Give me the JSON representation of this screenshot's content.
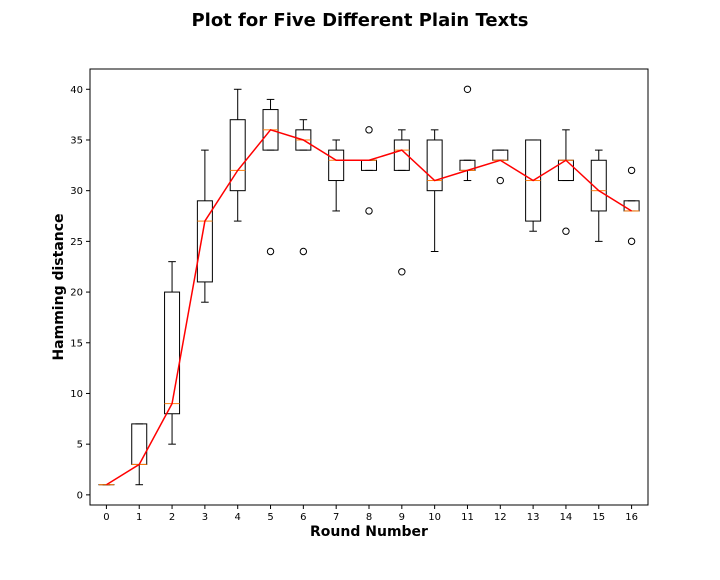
{
  "chart_data": {
    "type": "box",
    "title": "Plot for Five Different Plain Texts",
    "xlabel": "Round Number",
    "ylabel": "Hamming distance",
    "xlim": [
      -0.5,
      16.5
    ],
    "ylim": [
      -1,
      42
    ],
    "x_ticks": [
      "0",
      "1",
      "2",
      "3",
      "4",
      "5",
      "6",
      "7",
      "8",
      "9",
      "10",
      "11",
      "12",
      "13",
      "14",
      "15",
      "16"
    ],
    "y_ticks": [
      0,
      5,
      10,
      15,
      20,
      25,
      30,
      35,
      40
    ],
    "grid": false,
    "box_color": "#000000",
    "median_color": "#ff7f0e",
    "line_color": "#ff0000",
    "boxes": [
      {
        "x": 0,
        "whislo": 1,
        "q1": 1,
        "med": 1,
        "q3": 1,
        "whishi": 1,
        "fliers": []
      },
      {
        "x": 1,
        "whislo": 1,
        "q1": 3,
        "med": 3,
        "q3": 7,
        "whishi": 7,
        "fliers": []
      },
      {
        "x": 2,
        "whislo": 5,
        "q1": 8,
        "med": 9,
        "q3": 20,
        "whishi": 23,
        "fliers": []
      },
      {
        "x": 3,
        "whislo": 19,
        "q1": 21,
        "med": 27,
        "q3": 29,
        "whishi": 34,
        "fliers": []
      },
      {
        "x": 4,
        "whislo": 27,
        "q1": 30,
        "med": 32,
        "q3": 37,
        "whishi": 40,
        "fliers": []
      },
      {
        "x": 5,
        "whislo": 34,
        "q1": 34,
        "med": 36,
        "q3": 38,
        "whishi": 39,
        "fliers": [
          24
        ]
      },
      {
        "x": 6,
        "whislo": 34,
        "q1": 34,
        "med": 35,
        "q3": 36,
        "whishi": 37,
        "fliers": [
          24
        ]
      },
      {
        "x": 7,
        "whislo": 28,
        "q1": 31,
        "med": 33,
        "q3": 34,
        "whishi": 35,
        "fliers": []
      },
      {
        "x": 8,
        "whislo": 32,
        "q1": 32,
        "med": 33,
        "q3": 33,
        "whishi": 33,
        "fliers": [
          36,
          28
        ]
      },
      {
        "x": 9,
        "whislo": 32,
        "q1": 32,
        "med": 34,
        "q3": 35,
        "whishi": 36,
        "fliers": [
          22
        ]
      },
      {
        "x": 10,
        "whislo": 24,
        "q1": 30,
        "med": 31,
        "q3": 35,
        "whishi": 36,
        "fliers": []
      },
      {
        "x": 11,
        "whislo": 31,
        "q1": 32,
        "med": 32,
        "q3": 33,
        "whishi": 33,
        "fliers": [
          40
        ]
      },
      {
        "x": 12,
        "whislo": 33,
        "q1": 33,
        "med": 33,
        "q3": 34,
        "whishi": 34,
        "fliers": [
          31
        ]
      },
      {
        "x": 13,
        "whislo": 26,
        "q1": 27,
        "med": 31,
        "q3": 35,
        "whishi": 35,
        "fliers": []
      },
      {
        "x": 14,
        "whislo": 31,
        "q1": 31,
        "med": 33,
        "q3": 33,
        "whishi": 36,
        "fliers": [
          26
        ]
      },
      {
        "x": 15,
        "whislo": 25,
        "q1": 28,
        "med": 30,
        "q3": 33,
        "whishi": 34,
        "fliers": []
      },
      {
        "x": 16,
        "whislo": 28,
        "q1": 28,
        "med": 28,
        "q3": 29,
        "whishi": 29,
        "fliers": [
          32,
          25
        ]
      }
    ],
    "median_line": [
      1,
      3,
      9,
      27,
      32,
      36,
      35,
      33,
      33,
      34,
      31,
      32,
      33,
      31,
      33,
      30,
      28
    ]
  }
}
